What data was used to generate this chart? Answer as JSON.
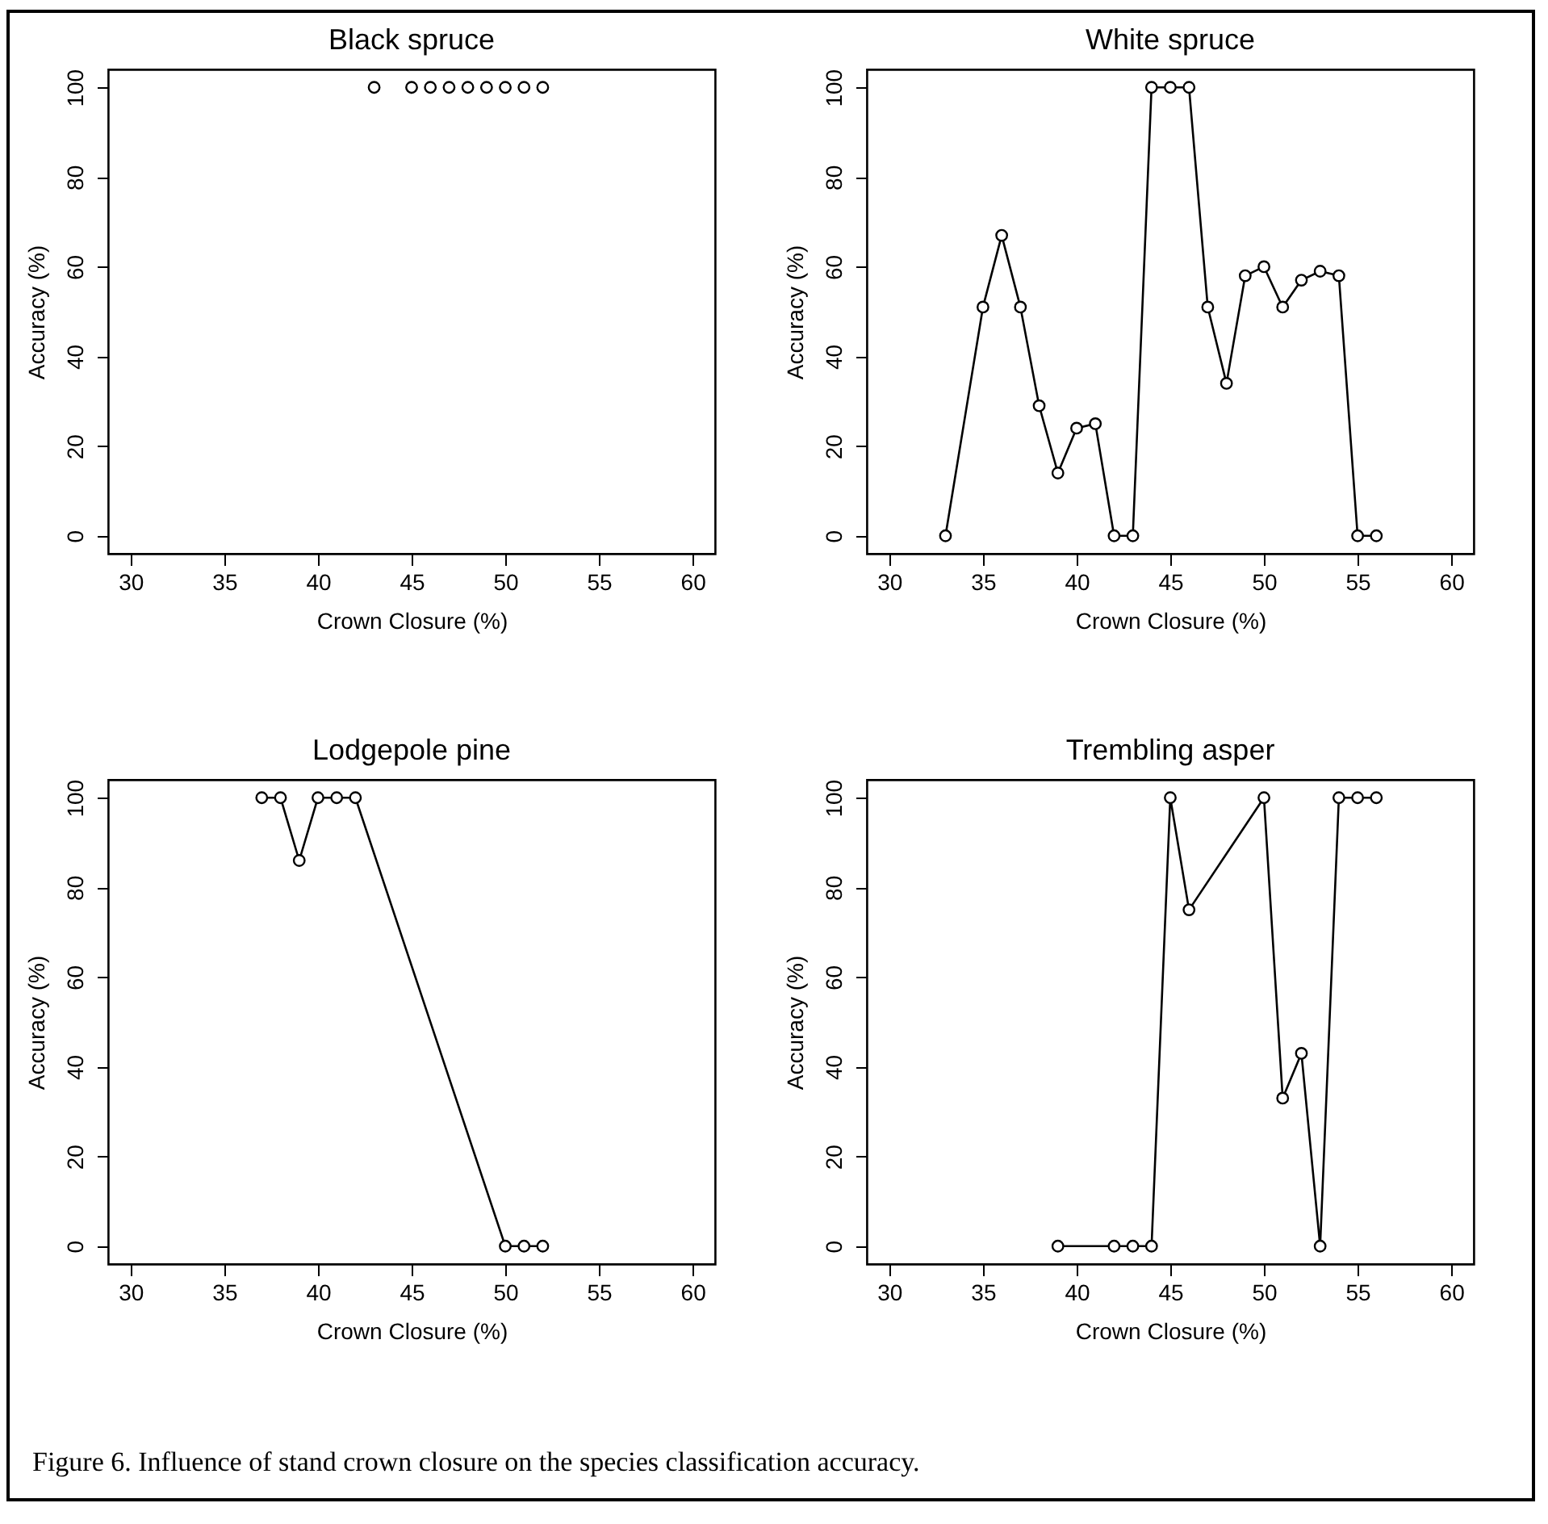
{
  "chart_data": [
    {
      "type": "scatter",
      "title": "Black spruce",
      "xlabel": "Crown Closure (%)",
      "ylabel": "Accuracy (%)",
      "xlim": [
        28.8,
        61.2
      ],
      "ylim": [
        -4,
        104
      ],
      "xticks": [
        30,
        35,
        40,
        45,
        50,
        55,
        60
      ],
      "yticks": [
        0,
        20,
        40,
        60,
        80,
        100
      ],
      "grid": false,
      "marker": "circle",
      "series": [
        {
          "color": "#000000",
          "x": [
            43,
            45,
            46,
            47,
            48,
            49,
            50,
            51,
            52
          ],
          "values": [
            100,
            100,
            100,
            100,
            100,
            100,
            100,
            100,
            100
          ]
        }
      ]
    },
    {
      "type": "line",
      "title": "White spruce",
      "xlabel": "Crown Closure (%)",
      "ylabel": "Accuracy (%)",
      "xlim": [
        28.8,
        61.2
      ],
      "ylim": [
        -4,
        104
      ],
      "xticks": [
        30,
        35,
        40,
        45,
        50,
        55,
        60
      ],
      "yticks": [
        0,
        20,
        40,
        60,
        80,
        100
      ],
      "grid": false,
      "marker": "circle",
      "line_style": "solid",
      "series": [
        {
          "color": "#000000",
          "x": [
            33,
            35,
            36,
            37,
            38,
            39,
            40,
            41,
            42,
            43,
            44,
            45,
            46,
            47,
            48,
            49,
            50,
            51,
            52,
            53,
            54,
            55,
            56
          ],
          "values": [
            0,
            51,
            67,
            51,
            29,
            14,
            24,
            25,
            0,
            0,
            100,
            100,
            100,
            51,
            34,
            58,
            60,
            51,
            57,
            59,
            58,
            0,
            0
          ]
        }
      ]
    },
    {
      "type": "line",
      "title": "Lodgepole pine",
      "xlabel": "Crown Closure (%)",
      "ylabel": "Accuracy (%)",
      "xlim": [
        28.8,
        61.2
      ],
      "ylim": [
        -4,
        104
      ],
      "xticks": [
        30,
        35,
        40,
        45,
        50,
        55,
        60
      ],
      "yticks": [
        0,
        20,
        40,
        60,
        80,
        100
      ],
      "grid": false,
      "marker": "circle",
      "line_style": "solid",
      "series": [
        {
          "color": "#000000",
          "x": [
            37,
            38,
            39,
            40,
            41,
            42,
            50,
            51,
            52
          ],
          "values": [
            100,
            100,
            86,
            100,
            100,
            100,
            0,
            0,
            0
          ]
        }
      ]
    },
    {
      "type": "line",
      "title": "Trembling asper",
      "xlabel": "Crown Closure (%)",
      "ylabel": "Accuracy (%)",
      "xlim": [
        28.8,
        61.2
      ],
      "ylim": [
        -4,
        104
      ],
      "xticks": [
        30,
        35,
        40,
        45,
        50,
        55,
        60
      ],
      "yticks": [
        0,
        20,
        40,
        60,
        80,
        100
      ],
      "grid": false,
      "marker": "circle",
      "line_style": "solid",
      "series": [
        {
          "color": "#000000",
          "x": [
            39,
            42,
            43,
            44,
            45,
            46,
            50,
            51,
            52,
            53,
            54,
            55,
            56
          ],
          "values": [
            0,
            0,
            0,
            0,
            100,
            75,
            100,
            33,
            43,
            0,
            100,
            100,
            100
          ]
        }
      ],
      "annotations": [
        "Figure 6. Influence of stand crown closure on the species classification accuracy."
      ]
    }
  ]
}
